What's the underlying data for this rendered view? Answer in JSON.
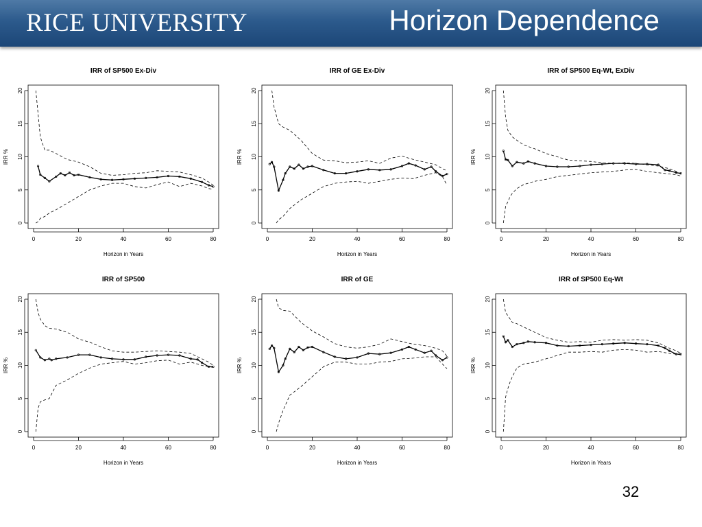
{
  "header": {
    "logo_text": "RICE UNIVERSITY",
    "title": "Horizon Dependence",
    "background": "#2c5a8c"
  },
  "page_number": "32",
  "chart_data": [
    {
      "type": "line",
      "title": "IRR of SP500 Ex-Div",
      "xlabel": "Horizon in Years",
      "ylabel": "IRR %",
      "xlim": [
        0,
        80
      ],
      "ylim": [
        0,
        20
      ],
      "x_ticks": [
        0,
        20,
        40,
        60,
        80
      ],
      "y_ticks": [
        0,
        5,
        10,
        15,
        20
      ],
      "series": [
        {
          "style": "upper-band",
          "x": [
            1,
            3,
            5,
            7,
            10,
            15,
            20,
            25,
            30,
            35,
            40,
            45,
            50,
            55,
            60,
            65,
            70,
            75,
            78,
            80
          ],
          "values": [
            20,
            13,
            11,
            11,
            10.5,
            9.6,
            9.2,
            8.5,
            7.5,
            7.2,
            7.3,
            7.5,
            7.6,
            7.9,
            7.8,
            7.7,
            7.3,
            6.8,
            6.2,
            5.7
          ]
        },
        {
          "style": "central",
          "x": [
            2,
            3,
            5,
            7,
            10,
            12,
            14,
            16,
            18,
            20,
            25,
            30,
            35,
            40,
            45,
            50,
            55,
            60,
            65,
            70,
            75,
            78,
            80
          ],
          "values": [
            8.6,
            7.3,
            6.8,
            6.3,
            7.0,
            7.5,
            7.2,
            7.6,
            7.2,
            7.3,
            6.9,
            6.6,
            6.5,
            6.6,
            6.7,
            6.8,
            6.9,
            7.1,
            7.0,
            6.7,
            6.2,
            5.7,
            5.5
          ]
        },
        {
          "style": "lower-band",
          "x": [
            1,
            2,
            3,
            5,
            7,
            10,
            15,
            20,
            25,
            30,
            35,
            40,
            45,
            50,
            55,
            60,
            65,
            70,
            75,
            78,
            80
          ],
          "values": [
            0,
            0.2,
            0.7,
            1.0,
            1.5,
            2.0,
            3.0,
            4.0,
            5.0,
            5.6,
            6.0,
            6.0,
            5.5,
            5.3,
            5.8,
            6.2,
            5.5,
            6.0,
            5.6,
            5.2,
            5.1
          ]
        }
      ]
    },
    {
      "type": "line",
      "title": "IRR of GE Ex-Div",
      "xlabel": "Horizon in Years",
      "ylabel": "IRR %",
      "xlim": [
        0,
        80
      ],
      "ylim": [
        0,
        20
      ],
      "x_ticks": [
        0,
        20,
        40,
        60,
        80
      ],
      "y_ticks": [
        0,
        5,
        10,
        15,
        20
      ],
      "series": [
        {
          "style": "upper-band",
          "x": [
            2,
            3,
            5,
            7,
            10,
            15,
            20,
            25,
            30,
            35,
            40,
            45,
            50,
            55,
            60,
            65,
            70,
            75,
            78,
            80
          ],
          "values": [
            20,
            17.5,
            15,
            14.5,
            14,
            12.5,
            10.5,
            9.5,
            9.4,
            9.1,
            9.2,
            9.4,
            9.0,
            9.8,
            10.1,
            9.6,
            9.2,
            8.8,
            8.2,
            7.9
          ]
        },
        {
          "style": "central",
          "x": [
            1,
            2,
            3,
            5,
            7,
            8,
            10,
            12,
            14,
            16,
            18,
            20,
            25,
            30,
            35,
            40,
            45,
            50,
            55,
            60,
            63,
            66,
            70,
            73,
            75,
            78,
            80
          ],
          "values": [
            8.9,
            9.2,
            8.5,
            4.9,
            6.5,
            7.5,
            8.5,
            8.2,
            8.8,
            8.2,
            8.5,
            8.6,
            8.0,
            7.5,
            7.5,
            7.8,
            8.1,
            8.0,
            8.1,
            8.6,
            9.0,
            8.7,
            8.1,
            8.5,
            7.8,
            7.1,
            7.4
          ]
        },
        {
          "style": "lower-band",
          "x": [
            4,
            5,
            7,
            10,
            15,
            20,
            25,
            30,
            35,
            40,
            45,
            50,
            55,
            60,
            65,
            70,
            75,
            78,
            80
          ],
          "values": [
            0,
            0.5,
            1.0,
            2.2,
            3.5,
            4.5,
            5.5,
            6.0,
            6.2,
            6.3,
            6.0,
            6.3,
            6.6,
            6.8,
            6.7,
            7.2,
            7.6,
            7.0,
            5.7
          ]
        }
      ]
    },
    {
      "type": "line",
      "title": "IRR of SP500 Eq-Wt, ExDiv",
      "xlabel": "Horizon in Years",
      "ylabel": "IRR %",
      "xlim": [
        0,
        80
      ],
      "ylim": [
        0,
        20
      ],
      "x_ticks": [
        0,
        20,
        40,
        60,
        80
      ],
      "y_ticks": [
        0,
        5,
        10,
        15,
        20
      ],
      "series": [
        {
          "style": "upper-band",
          "x": [
            1,
            2,
            3,
            5,
            7,
            10,
            15,
            20,
            25,
            30,
            35,
            40,
            45,
            50,
            55,
            60,
            65,
            70,
            75,
            78,
            80
          ],
          "values": [
            20,
            16,
            14,
            13,
            12.5,
            11.8,
            11.2,
            10.5,
            10,
            9.5,
            9.4,
            9.3,
            9.1,
            9.0,
            9.1,
            9.0,
            8.8,
            8.6,
            8.2,
            7.8,
            7.4
          ]
        },
        {
          "style": "central",
          "x": [
            1,
            2,
            3,
            5,
            7,
            10,
            12,
            15,
            20,
            25,
            30,
            35,
            40,
            45,
            50,
            55,
            60,
            65,
            70,
            73,
            75,
            78,
            80
          ],
          "values": [
            10.9,
            9.6,
            9.5,
            8.6,
            9.2,
            9.0,
            9.3,
            9.0,
            8.6,
            8.5,
            8.5,
            8.6,
            8.8,
            8.9,
            9.0,
            9.0,
            8.9,
            8.9,
            8.8,
            8.0,
            7.9,
            7.6,
            7.5
          ]
        },
        {
          "style": "lower-band",
          "x": [
            1,
            2,
            3,
            4,
            5,
            7,
            10,
            15,
            20,
            25,
            30,
            35,
            40,
            45,
            50,
            55,
            60,
            65,
            70,
            75,
            78,
            80
          ],
          "values": [
            0,
            2.5,
            3.2,
            4.0,
            4.5,
            5.2,
            5.8,
            6.3,
            6.6,
            7.0,
            7.2,
            7.4,
            7.6,
            7.7,
            7.8,
            8.0,
            8.1,
            7.8,
            7.6,
            7.4,
            7.3,
            7.1
          ]
        }
      ]
    },
    {
      "type": "line",
      "title": "IRR of SP500",
      "xlabel": "Horizon in Years",
      "ylabel": "IRR %",
      "xlim": [
        0,
        80
      ],
      "ylim": [
        0,
        20
      ],
      "x_ticks": [
        0,
        20,
        40,
        60,
        80
      ],
      "y_ticks": [
        0,
        5,
        10,
        15,
        20
      ],
      "series": [
        {
          "style": "upper-band",
          "x": [
            1,
            2,
            3,
            5,
            7,
            10,
            15,
            20,
            25,
            30,
            35,
            40,
            45,
            50,
            55,
            60,
            65,
            70,
            75,
            78,
            80
          ],
          "values": [
            20,
            18,
            17,
            16,
            15.6,
            15.5,
            15,
            14,
            13.5,
            12.8,
            12.2,
            12.0,
            12.0,
            12.1,
            12.2,
            12.1,
            12.0,
            11.8,
            11.0,
            10.5,
            10.0
          ]
        },
        {
          "style": "central",
          "x": [
            1,
            3,
            5,
            7,
            8,
            10,
            15,
            20,
            25,
            30,
            35,
            40,
            45,
            50,
            55,
            60,
            65,
            70,
            73,
            75,
            78,
            80
          ],
          "values": [
            12.3,
            11.2,
            10.8,
            11.0,
            10.8,
            11.0,
            11.2,
            11.6,
            11.6,
            11.2,
            11.0,
            10.9,
            10.9,
            11.3,
            11.5,
            11.6,
            11.5,
            11.0,
            10.9,
            10.4,
            9.8,
            9.8
          ]
        },
        {
          "style": "lower-band",
          "x": [
            1,
            2,
            3,
            5,
            7,
            10,
            15,
            20,
            25,
            30,
            35,
            40,
            45,
            50,
            55,
            60,
            65,
            70,
            75,
            78,
            80
          ],
          "values": [
            0,
            3.5,
            4.5,
            4.8,
            5.0,
            7.0,
            7.8,
            8.8,
            9.6,
            10.2,
            10.4,
            10.6,
            10.2,
            10.4,
            10.7,
            10.8,
            10.2,
            10.5,
            10.0,
            9.8,
            9.7
          ]
        }
      ]
    },
    {
      "type": "line",
      "title": "IRR of GE",
      "xlabel": "Horizon in Years",
      "ylabel": "IRR %",
      "xlim": [
        0,
        80
      ],
      "ylim": [
        0,
        20
      ],
      "x_ticks": [
        0,
        20,
        40,
        60,
        80
      ],
      "y_ticks": [
        0,
        5,
        10,
        15,
        20
      ],
      "series": [
        {
          "style": "upper-band",
          "x": [
            4,
            5,
            7,
            10,
            15,
            20,
            25,
            30,
            35,
            40,
            45,
            50,
            55,
            60,
            65,
            70,
            75,
            78,
            80
          ],
          "values": [
            20,
            18.7,
            18.3,
            18.2,
            16.5,
            15.2,
            14.3,
            13.3,
            12.8,
            12.6,
            12.8,
            13.2,
            14.0,
            13.6,
            13.2,
            13.0,
            12.6,
            12.2,
            11.4
          ]
        },
        {
          "style": "central",
          "x": [
            1,
            2,
            3,
            5,
            7,
            8,
            10,
            12,
            14,
            16,
            18,
            20,
            25,
            30,
            35,
            40,
            45,
            50,
            55,
            60,
            63,
            66,
            70,
            73,
            75,
            78,
            80
          ],
          "values": [
            12.5,
            13.0,
            12.6,
            9.0,
            10.0,
            11.0,
            12.5,
            12.0,
            12.8,
            12.3,
            12.7,
            12.8,
            12.0,
            11.3,
            11.0,
            11.2,
            11.8,
            11.7,
            11.9,
            12.4,
            12.8,
            12.4,
            11.9,
            12.2,
            11.5,
            10.8,
            11.2
          ]
        },
        {
          "style": "lower-band",
          "x": [
            4,
            5,
            7,
            10,
            15,
            20,
            25,
            30,
            35,
            40,
            45,
            50,
            55,
            60,
            65,
            70,
            75,
            78,
            80
          ],
          "values": [
            0,
            1.3,
            3.2,
            5.5,
            6.8,
            8.3,
            9.8,
            10.5,
            10.5,
            10.2,
            10.2,
            10.5,
            10.6,
            11.0,
            11.1,
            11.3,
            11.3,
            10.2,
            9.5
          ]
        }
      ]
    },
    {
      "type": "line",
      "title": "IRR of SP500 Eq-Wt",
      "xlabel": "Horizon in Years",
      "ylabel": "IRR %",
      "xlim": [
        0,
        80
      ],
      "ylim": [
        0,
        20
      ],
      "x_ticks": [
        0,
        20,
        40,
        60,
        80
      ],
      "y_ticks": [
        0,
        5,
        10,
        15,
        20
      ],
      "series": [
        {
          "style": "upper-band",
          "x": [
            1,
            2,
            3,
            5,
            7,
            10,
            15,
            20,
            25,
            30,
            35,
            40,
            45,
            50,
            55,
            60,
            65,
            70,
            75,
            78,
            80
          ],
          "values": [
            20,
            18,
            17.5,
            16.5,
            16.3,
            15.8,
            15.0,
            14.2,
            13.8,
            13.5,
            13.6,
            13.5,
            13.8,
            13.9,
            13.8,
            13.9,
            13.8,
            13.4,
            12.6,
            12.2,
            11.8
          ]
        },
        {
          "style": "central",
          "x": [
            1,
            2,
            3,
            5,
            7,
            10,
            12,
            15,
            20,
            25,
            30,
            35,
            40,
            45,
            50,
            55,
            60,
            65,
            70,
            73,
            75,
            78,
            80
          ],
          "values": [
            14.4,
            13.5,
            13.8,
            12.8,
            13.2,
            13.4,
            13.6,
            13.5,
            13.4,
            13.0,
            12.9,
            13.0,
            13.1,
            13.2,
            13.3,
            13.4,
            13.3,
            13.2,
            13.0,
            12.6,
            12.2,
            11.7,
            11.7
          ]
        },
        {
          "style": "lower-band",
          "x": [
            1,
            2,
            3,
            4,
            5,
            7,
            10,
            15,
            20,
            25,
            30,
            35,
            40,
            45,
            50,
            55,
            60,
            65,
            70,
            75,
            78,
            80
          ],
          "values": [
            0,
            5.2,
            6.5,
            7.5,
            8.3,
            9.6,
            10.2,
            10.5,
            11.0,
            11.5,
            12.0,
            12.0,
            12.1,
            12.0,
            12.3,
            12.4,
            12.3,
            12.0,
            12.1,
            11.8,
            11.7,
            11.6
          ]
        }
      ]
    }
  ]
}
